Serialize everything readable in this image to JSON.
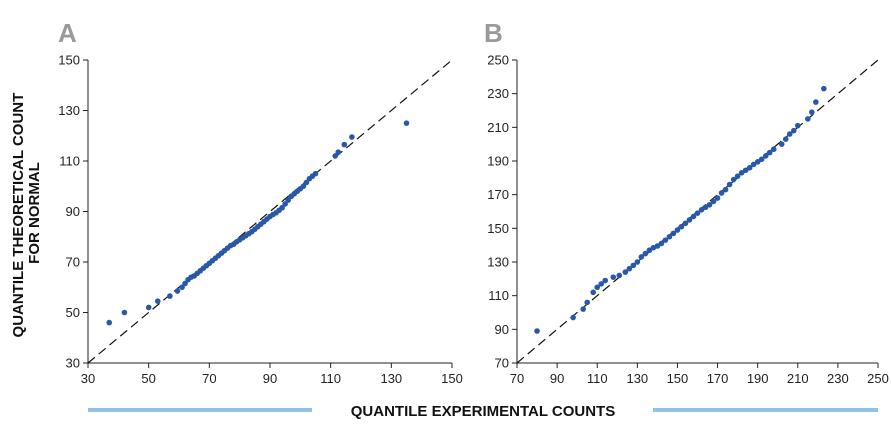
{
  "figure": {
    "ylabel_line1": "QUANTILE THEORETICAL COUNT",
    "ylabel_line2": "FOR NORMAL",
    "xlabel": "QUANTILE EXPERIMENTAL COUNTS",
    "colors": {
      "points": "#2a58a8",
      "reference_line": "#111111",
      "xlabel_bar": "#8ec3e6",
      "panel_letter": "#9a9a9a"
    }
  },
  "chart_data": [
    {
      "type": "scatter",
      "panel_label": "A",
      "xlim": [
        30,
        150
      ],
      "ylim": [
        30,
        150
      ],
      "x_ticks": [
        30,
        50,
        70,
        90,
        110,
        130,
        150
      ],
      "y_ticks": [
        30,
        50,
        70,
        90,
        110,
        130,
        150
      ],
      "reference_line": "y = x (dashed)",
      "points": [
        [
          37,
          46
        ],
        [
          42,
          50
        ],
        [
          50,
          52
        ],
        [
          53,
          54.5
        ],
        [
          57,
          56.5
        ],
        [
          59.5,
          58.5
        ],
        [
          61,
          60
        ],
        [
          62,
          61.5
        ],
        [
          63,
          63
        ],
        [
          64,
          64
        ],
        [
          65,
          64.5
        ],
        [
          66,
          65.5
        ],
        [
          67,
          66.5
        ],
        [
          68,
          67.5
        ],
        [
          69,
          68.5
        ],
        [
          70,
          69.5
        ],
        [
          71,
          70.5
        ],
        [
          72,
          71.5
        ],
        [
          73,
          72.5
        ],
        [
          74,
          73.5
        ],
        [
          75,
          74.5
        ],
        [
          76,
          75.5
        ],
        [
          77,
          76.5
        ],
        [
          78,
          77
        ],
        [
          79,
          78
        ],
        [
          80,
          78.8
        ],
        [
          81,
          79.6
        ],
        [
          82,
          80.4
        ],
        [
          83,
          81.2
        ],
        [
          84,
          82
        ],
        [
          85,
          83
        ],
        [
          86,
          84
        ],
        [
          87,
          85
        ],
        [
          88,
          86
        ],
        [
          89,
          87
        ],
        [
          90,
          88
        ],
        [
          91,
          88.8
        ],
        [
          92,
          89.5
        ],
        [
          93,
          90.5
        ],
        [
          94,
          91.5
        ],
        [
          95,
          93
        ],
        [
          96,
          94.5
        ],
        [
          97,
          96
        ],
        [
          98,
          97
        ],
        [
          99,
          98
        ],
        [
          100,
          99
        ],
        [
          101,
          100
        ],
        [
          102,
          101.5
        ],
        [
          103,
          103
        ],
        [
          104,
          104
        ],
        [
          105,
          105
        ],
        [
          111.5,
          112
        ],
        [
          112.5,
          113.5
        ],
        [
          114.5,
          116.5
        ],
        [
          117,
          119.5
        ],
        [
          135,
          125
        ]
      ]
    },
    {
      "type": "scatter",
      "panel_label": "B",
      "xlim": [
        70,
        250
      ],
      "ylim": [
        70,
        250
      ],
      "x_ticks": [
        70,
        90,
        110,
        130,
        150,
        170,
        190,
        210,
        230,
        250
      ],
      "y_ticks": [
        70,
        90,
        110,
        130,
        150,
        170,
        190,
        210,
        230,
        250
      ],
      "reference_line": "y = x (dashed)",
      "points": [
        [
          80,
          89
        ],
        [
          98,
          97
        ],
        [
          103,
          102
        ],
        [
          105,
          106
        ],
        [
          108,
          112
        ],
        [
          110,
          115
        ],
        [
          112,
          117
        ],
        [
          114,
          119
        ],
        [
          118,
          121
        ],
        [
          121,
          122
        ],
        [
          124,
          124
        ],
        [
          126,
          126
        ],
        [
          128,
          128
        ],
        [
          130,
          130
        ],
        [
          132,
          133
        ],
        [
          134,
          135
        ],
        [
          136,
          137
        ],
        [
          138,
          138.5
        ],
        [
          140,
          139.5
        ],
        [
          142,
          141
        ],
        [
          144,
          143
        ],
        [
          146,
          145
        ],
        [
          148,
          147
        ],
        [
          150,
          149
        ],
        [
          152,
          151
        ],
        [
          154,
          153
        ],
        [
          156,
          155
        ],
        [
          158,
          157
        ],
        [
          160,
          159
        ],
        [
          162,
          161
        ],
        [
          164,
          162.5
        ],
        [
          166,
          164
        ],
        [
          168,
          166
        ],
        [
          170,
          168
        ],
        [
          172,
          171
        ],
        [
          174,
          173
        ],
        [
          176,
          176
        ],
        [
          178,
          179
        ],
        [
          180,
          181
        ],
        [
          182,
          183
        ],
        [
          184,
          184.5
        ],
        [
          186,
          186
        ],
        [
          188,
          188
        ],
        [
          190,
          189.5
        ],
        [
          192,
          191
        ],
        [
          194,
          193
        ],
        [
          196,
          195
        ],
        [
          198,
          197
        ],
        [
          202,
          200
        ],
        [
          204,
          203
        ],
        [
          206,
          206
        ],
        [
          208,
          208
        ],
        [
          210,
          211
        ],
        [
          215,
          215
        ],
        [
          217,
          219
        ],
        [
          219,
          225
        ],
        [
          223,
          233
        ]
      ]
    }
  ]
}
